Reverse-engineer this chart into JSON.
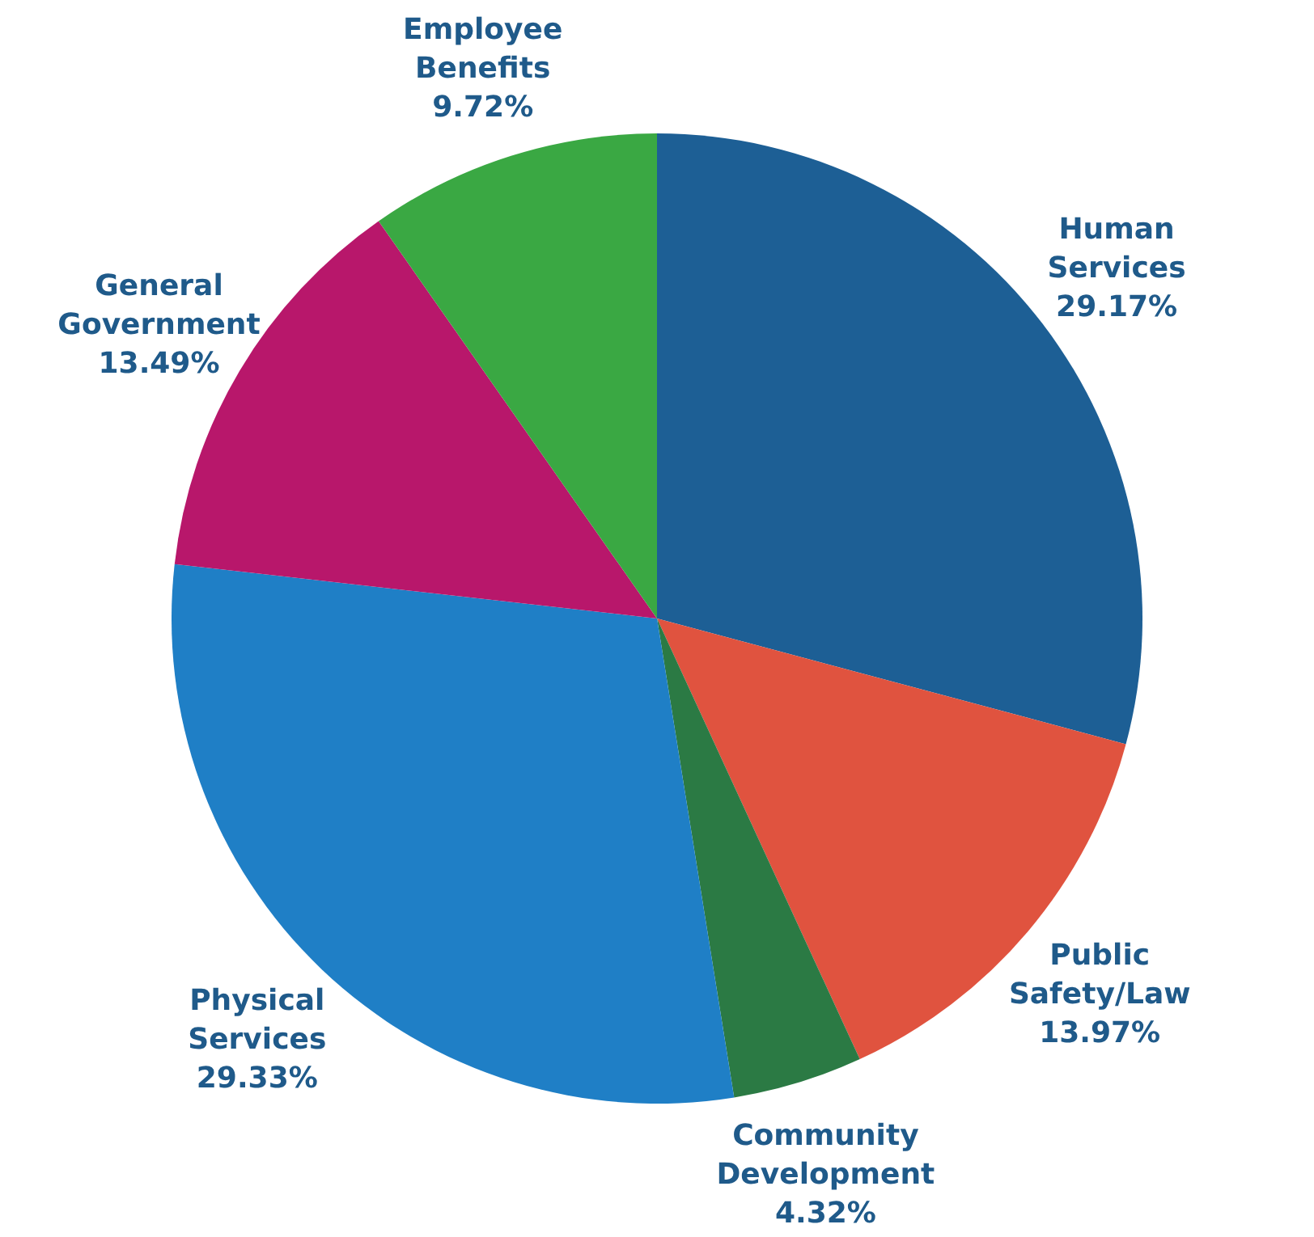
{
  "chart_data": {
    "type": "pie",
    "categories": [
      "Human Services",
      "Public Safety/Law",
      "Community Development",
      "Physical Services",
      "General Government",
      "Employee Benefits"
    ],
    "values": [
      29.17,
      13.97,
      4.32,
      29.33,
      13.49,
      9.72
    ],
    "colors": [
      "#1d5f95",
      "#e0533f",
      "#2b7a44",
      "#1f7fc6",
      "#b8176b",
      "#3aa843"
    ],
    "value_labels": [
      "29.17%",
      "13.97%",
      "4.32%",
      "29.33%",
      "13.49%",
      "9.72%"
    ]
  }
}
